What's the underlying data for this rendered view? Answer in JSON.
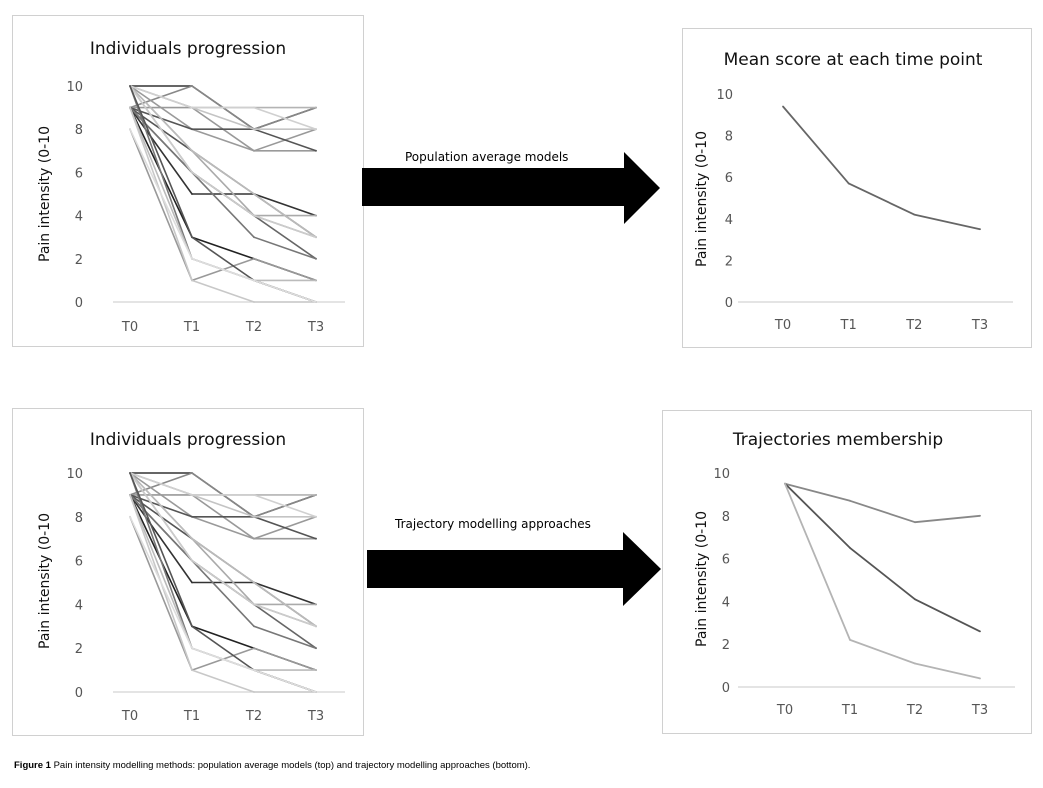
{
  "chart_data": [
    {
      "type": "line",
      "title": "Individuals progression",
      "ylabel": "Pain intensity (0-10",
      "categories": [
        "T0",
        "T1",
        "T2",
        "T3"
      ],
      "yticks": [
        0,
        2,
        4,
        6,
        8,
        10
      ],
      "ylim": [
        0,
        10
      ],
      "grid": false,
      "series": [
        {
          "values": [
            10,
            10,
            8,
            9
          ],
          "color": "#333333"
        },
        {
          "values": [
            9,
            10,
            8,
            9
          ],
          "color": "#888888"
        },
        {
          "values": [
            10,
            9,
            9,
            9
          ],
          "color": "#b4b4b4"
        },
        {
          "values": [
            9,
            9,
            7,
            8
          ],
          "color": "#999999"
        },
        {
          "values": [
            10,
            8,
            7,
            7
          ],
          "color": "#9a9a9a"
        },
        {
          "values": [
            9,
            8,
            8,
            7
          ],
          "color": "#555555"
        },
        {
          "values": [
            10,
            9,
            8,
            8
          ],
          "color": "#c4c4c4"
        },
        {
          "values": [
            10,
            9,
            9,
            8
          ],
          "color": "#d0d0d0"
        },
        {
          "values": [
            9,
            7,
            5,
            3
          ],
          "color": "#555555"
        },
        {
          "values": [
            10,
            6,
            4,
            3
          ],
          "color": "#999999"
        },
        {
          "values": [
            9,
            5,
            5,
            4
          ],
          "color": "#333333"
        },
        {
          "values": [
            10,
            7,
            4,
            4
          ],
          "color": "#aaaaaa"
        },
        {
          "values": [
            9,
            6,
            4,
            2
          ],
          "color": "#666666"
        },
        {
          "values": [
            10,
            7,
            5,
            3
          ],
          "color": "#bbbbbb"
        },
        {
          "values": [
            9,
            6,
            3,
            2
          ],
          "color": "#777777"
        },
        {
          "values": [
            10,
            6,
            4,
            3
          ],
          "color": "#cccccc"
        },
        {
          "values": [
            9,
            3,
            2,
            1
          ],
          "color": "#222222"
        },
        {
          "values": [
            10,
            2,
            1,
            0
          ],
          "color": "#777777"
        },
        {
          "values": [
            8,
            1,
            2,
            1
          ],
          "color": "#999999"
        },
        {
          "values": [
            9,
            2,
            1,
            1
          ],
          "color": "#bbbbbb"
        },
        {
          "values": [
            10,
            3,
            1,
            0
          ],
          "color": "#555555"
        },
        {
          "values": [
            9,
            1,
            0,
            0
          ],
          "color": "#c8c8c8"
        },
        {
          "values": [
            8,
            2,
            1,
            0
          ],
          "color": "#dddddd"
        }
      ]
    },
    {
      "type": "line",
      "title": "Mean score at each time point",
      "ylabel": "Pain intensity (0-10",
      "categories": [
        "T0",
        "T1",
        "T2",
        "T3"
      ],
      "yticks": [
        0,
        2,
        4,
        6,
        8,
        10
      ],
      "ylim": [
        0,
        10
      ],
      "grid": false,
      "series": [
        {
          "values": [
            9.4,
            5.7,
            4.2,
            3.5
          ],
          "color": "#666666"
        }
      ]
    },
    {
      "type": "line",
      "title": "Individuals progression",
      "ylabel": "Pain intensity (0-10",
      "categories": [
        "T0",
        "T1",
        "T2",
        "T3"
      ],
      "yticks": [
        0,
        2,
        4,
        6,
        8,
        10
      ],
      "ylim": [
        0,
        10
      ],
      "grid": false,
      "series": [
        {
          "values": [
            10,
            10,
            8,
            9
          ],
          "color": "#333333"
        },
        {
          "values": [
            9,
            10,
            8,
            9
          ],
          "color": "#888888"
        },
        {
          "values": [
            10,
            9,
            9,
            9
          ],
          "color": "#b4b4b4"
        },
        {
          "values": [
            9,
            9,
            7,
            8
          ],
          "color": "#999999"
        },
        {
          "values": [
            10,
            8,
            7,
            7
          ],
          "color": "#9a9a9a"
        },
        {
          "values": [
            9,
            8,
            8,
            7
          ],
          "color": "#555555"
        },
        {
          "values": [
            10,
            9,
            8,
            8
          ],
          "color": "#c4c4c4"
        },
        {
          "values": [
            10,
            9,
            9,
            8
          ],
          "color": "#d0d0d0"
        },
        {
          "values": [
            9,
            7,
            5,
            3
          ],
          "color": "#555555"
        },
        {
          "values": [
            10,
            6,
            4,
            3
          ],
          "color": "#999999"
        },
        {
          "values": [
            9,
            5,
            5,
            4
          ],
          "color": "#333333"
        },
        {
          "values": [
            10,
            7,
            4,
            4
          ],
          "color": "#aaaaaa"
        },
        {
          "values": [
            9,
            6,
            4,
            2
          ],
          "color": "#666666"
        },
        {
          "values": [
            10,
            7,
            5,
            3
          ],
          "color": "#bbbbbb"
        },
        {
          "values": [
            9,
            6,
            3,
            2
          ],
          "color": "#777777"
        },
        {
          "values": [
            10,
            6,
            4,
            3
          ],
          "color": "#cccccc"
        },
        {
          "values": [
            9,
            3,
            2,
            1
          ],
          "color": "#222222"
        },
        {
          "values": [
            10,
            2,
            1,
            0
          ],
          "color": "#777777"
        },
        {
          "values": [
            8,
            1,
            2,
            1
          ],
          "color": "#999999"
        },
        {
          "values": [
            9,
            2,
            1,
            1
          ],
          "color": "#bbbbbb"
        },
        {
          "values": [
            10,
            3,
            1,
            0
          ],
          "color": "#555555"
        },
        {
          "values": [
            9,
            1,
            0,
            0
          ],
          "color": "#c8c8c8"
        },
        {
          "values": [
            8,
            2,
            1,
            0
          ],
          "color": "#dddddd"
        }
      ]
    },
    {
      "type": "line",
      "title": "Trajectories membership",
      "ylabel": "Pain intensity (0-10",
      "categories": [
        "T0",
        "T1",
        "T2",
        "T3"
      ],
      "yticks": [
        0,
        2,
        4,
        6,
        8,
        10
      ],
      "ylim": [
        0,
        10
      ],
      "grid": false,
      "series": [
        {
          "values": [
            9.5,
            8.7,
            7.7,
            8.0
          ],
          "color": "#888888"
        },
        {
          "values": [
            9.5,
            6.5,
            4.1,
            2.6
          ],
          "color": "#555555"
        },
        {
          "values": [
            9.5,
            2.2,
            1.1,
            0.4
          ],
          "color": "#b4b4b4"
        }
      ]
    }
  ],
  "arrows": {
    "top_label": "Population average models",
    "bottom_label": "Trajectory modelling approaches"
  },
  "caption": {
    "figure_label": "Figure 1",
    "text": "Pain intensity modelling methods: population average models (top) and trajectory modelling approaches (bottom)."
  }
}
